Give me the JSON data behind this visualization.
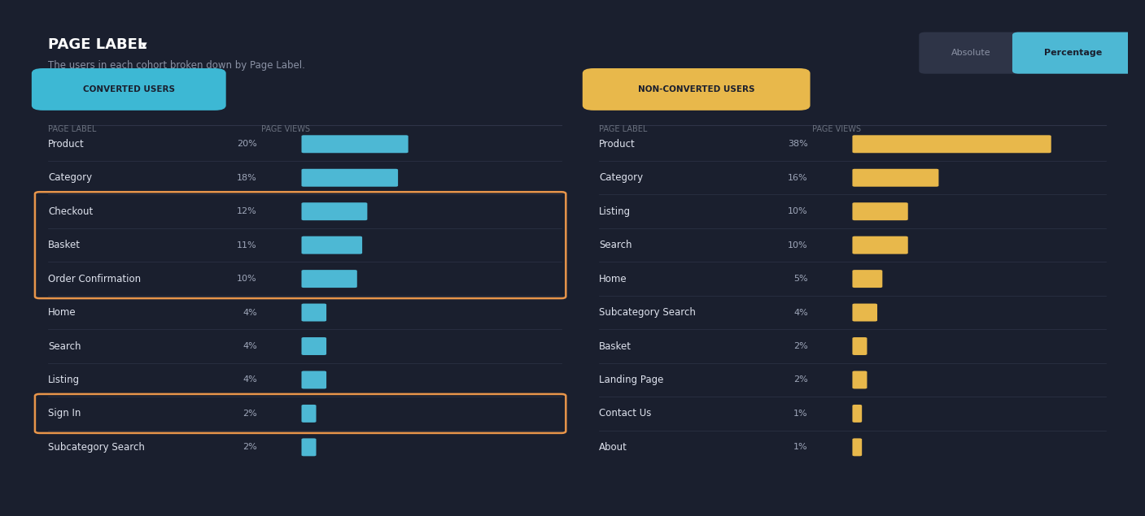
{
  "bg_outer": "#1a1f2e",
  "bg_card": "#242938",
  "title": "PAGE LABEL",
  "subtitle": "The users in each cohort broken down by Page Label.",
  "title_color": "#ffffff",
  "subtitle_color": "#8b92a5",
  "col_header_color": "#6b7280",
  "toggle_abs": "Absolute",
  "toggle_pct": "Percentage",
  "converted_label": "CONVERTED USERS",
  "converted_label_bg": "#3db8d4",
  "converted_label_text": "#1a1f2e",
  "non_converted_label": "NON-CONVERTED USERS",
  "non_converted_label_bg": "#e8b84b",
  "non_converted_label_text": "#1a1f2e",
  "col_header": "PAGE VIEWS",
  "col_header2": "PAGE LABEL",
  "converted": [
    {
      "label": "Product",
      "value": 20,
      "highlighted": false
    },
    {
      "label": "Category",
      "value": 18,
      "highlighted": false
    },
    {
      "label": "Checkout",
      "value": 12,
      "highlighted": true
    },
    {
      "label": "Basket",
      "value": 11,
      "highlighted": true
    },
    {
      "label": "Order Confirmation",
      "value": 10,
      "highlighted": true
    },
    {
      "label": "Home",
      "value": 4,
      "highlighted": false
    },
    {
      "label": "Search",
      "value": 4,
      "highlighted": false
    },
    {
      "label": "Listing",
      "value": 4,
      "highlighted": false
    },
    {
      "label": "Sign In",
      "value": 2,
      "highlighted": true
    },
    {
      "label": "Subcategory Search",
      "value": 2,
      "highlighted": false
    }
  ],
  "non_converted": [
    {
      "label": "Product",
      "value": 38,
      "highlighted": false
    },
    {
      "label": "Category",
      "value": 16,
      "highlighted": false
    },
    {
      "label": "Listing",
      "value": 10,
      "highlighted": false
    },
    {
      "label": "Search",
      "value": 10,
      "highlighted": false
    },
    {
      "label": "Home",
      "value": 5,
      "highlighted": false
    },
    {
      "label": "Subcategory Search",
      "value": 4,
      "highlighted": false
    },
    {
      "label": "Basket",
      "value": 2,
      "highlighted": false
    },
    {
      "label": "Landing Page",
      "value": 2,
      "highlighted": false
    },
    {
      "label": "Contact Us",
      "value": 1,
      "highlighted": false
    },
    {
      "label": "About",
      "value": 1,
      "highlighted": false
    }
  ],
  "bar_color_converted": "#4db8d4",
  "bar_color_non_converted": "#e8b84b",
  "highlight_box_color": "#e8954a",
  "row_line_color": "#2e3447",
  "text_white": "#e0e4ef",
  "text_pct": "#a0a8bb",
  "max_val": 38
}
